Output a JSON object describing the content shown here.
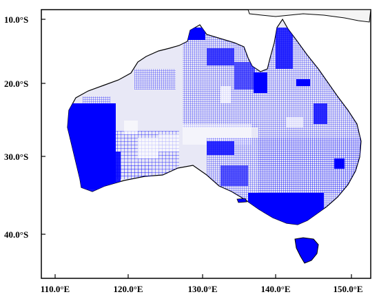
{
  "map": {
    "projection": "geographic lon/lat grid",
    "extent": {
      "lon": [
        110,
        155
      ],
      "lat": [
        -46,
        -9
      ]
    },
    "land_fill": "#e8e8f6",
    "coastline_color": "#000000",
    "coverage_color": "#0000ff",
    "coverage_dense_color": "#0000dd",
    "regions": [
      "Australia",
      "Tasmania",
      "New Guinea (southern coast)"
    ]
  },
  "axes": {
    "x_ticks": [
      "110.0°E",
      "120.0°E",
      "130.0°E",
      "140.0°E",
      "150.0°E"
    ],
    "y_ticks": [
      "10.0°S",
      "20.0°S",
      "30.0°S",
      "40.0°S"
    ]
  }
}
